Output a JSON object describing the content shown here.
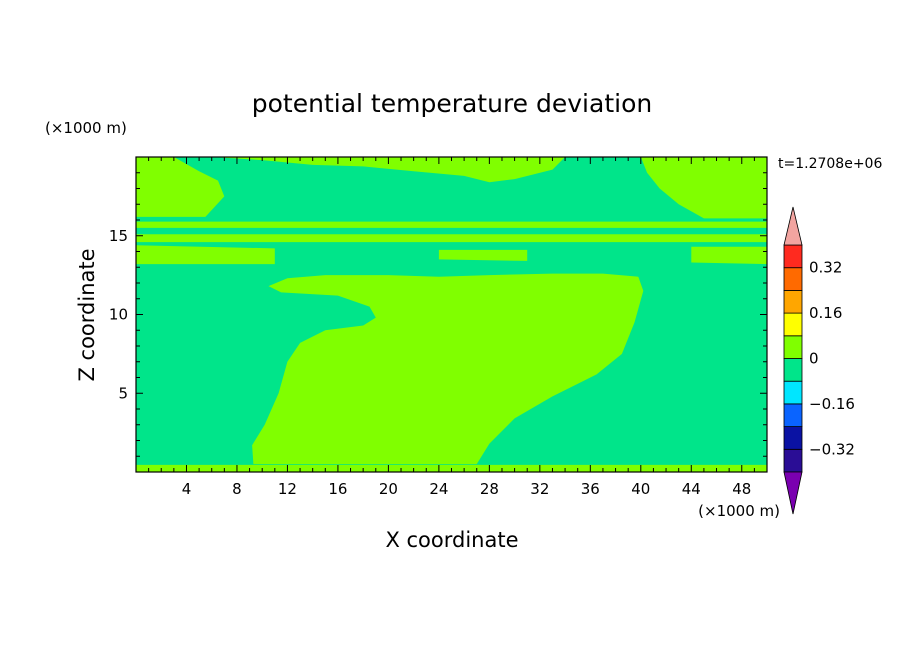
{
  "chart_data": {
    "type": "heatmap",
    "title": "potential temperature deviation",
    "xlabel": "X coordinate",
    "ylabel": "Z coordinate",
    "x_unit": "(×1000 m)",
    "y_unit": "(×1000 m)",
    "time_label": "t=1.2708e+06",
    "xlim": [
      0,
      50
    ],
    "ylim": [
      0,
      20
    ],
    "x_ticks": [
      4,
      8,
      12,
      16,
      20,
      24,
      28,
      32,
      36,
      40,
      44,
      48
    ],
    "y_ticks": [
      5,
      10,
      15
    ],
    "background_level": "-0.08_to_0",
    "colorbar": {
      "levels": [
        -0.4,
        -0.32,
        -0.24,
        -0.16,
        -0.08,
        0,
        0.08,
        0.16,
        0.24,
        0.32,
        0.4
      ],
      "labels": [
        "-0.32",
        "-0.16",
        "0",
        "0.16",
        "0.32"
      ],
      "label_values": [
        -0.32,
        -0.16,
        0,
        0.16,
        0.32
      ],
      "colors": [
        "#2a0d95",
        "#0a12a3",
        "#0a64ff",
        "#00e6ff",
        "#00e58a",
        "#80ff00",
        "#ffff00",
        "#ffa600",
        "#ff6a00",
        "#ff2a1f"
      ],
      "under_color": "#7a00b0",
      "over_color": "#f2a4a0"
    },
    "regions": [
      {
        "name": "warm-core",
        "level": "0_to_0.08",
        "color": "#80ff00",
        "polygon": [
          [
            9.3,
            0.5
          ],
          [
            27,
            0.5
          ],
          [
            28,
            1.8
          ],
          [
            30,
            3.4
          ],
          [
            33,
            4.8
          ],
          [
            36.5,
            6.2
          ],
          [
            38.5,
            7.5
          ],
          [
            39.5,
            9.5
          ],
          [
            40.2,
            11.5
          ],
          [
            39.8,
            12.4
          ],
          [
            37,
            12.6
          ],
          [
            33,
            12.6
          ],
          [
            28,
            12.5
          ],
          [
            24,
            12.4
          ],
          [
            20,
            12.5
          ],
          [
            15,
            12.5
          ],
          [
            12,
            12.3
          ],
          [
            10.5,
            11.8
          ],
          [
            11.5,
            11.4
          ],
          [
            16,
            11.2
          ],
          [
            18.5,
            10.5
          ],
          [
            19,
            9.8
          ],
          [
            18,
            9.3
          ],
          [
            15,
            9.0
          ],
          [
            13,
            8.2
          ],
          [
            12,
            7.0
          ],
          [
            11.3,
            5.0
          ],
          [
            10.2,
            3.0
          ],
          [
            9.2,
            1.7
          ]
        ]
      },
      {
        "name": "upper-band",
        "level": "0_to_0.08",
        "color": "#80ff00",
        "polygon": [
          [
            0,
            14.6
          ],
          [
            50,
            14.6
          ],
          [
            50,
            15.1
          ],
          [
            0,
            15.1
          ]
        ]
      },
      {
        "name": "upper-band-2",
        "level": "0_to_0.08",
        "color": "#80ff00",
        "polygon": [
          [
            0,
            15.5
          ],
          [
            50,
            15.5
          ],
          [
            50,
            15.9
          ],
          [
            0,
            15.9
          ]
        ]
      },
      {
        "name": "upper-strip-left",
        "level": "0_to_0.08",
        "color": "#80ff00",
        "polygon": [
          [
            0,
            13.2
          ],
          [
            11,
            13.2
          ],
          [
            11,
            14.2
          ],
          [
            0,
            14.4
          ]
        ]
      },
      {
        "name": "upper-strip-mid",
        "level": "0_to_0.08",
        "color": "#80ff00",
        "polygon": [
          [
            24,
            13.5
          ],
          [
            31,
            13.4
          ],
          [
            31,
            14.1
          ],
          [
            24,
            14.1
          ]
        ]
      },
      {
        "name": "upper-strip-right",
        "level": "0_to_0.08",
        "color": "#80ff00",
        "polygon": [
          [
            44,
            13.3
          ],
          [
            50,
            13.2
          ],
          [
            50,
            14.3
          ],
          [
            44,
            14.3
          ]
        ]
      },
      {
        "name": "stratosphere-left",
        "level": "0_to_0.08",
        "color": "#80ff00",
        "polygon": [
          [
            0,
            16.2
          ],
          [
            5.5,
            16.2
          ],
          [
            7,
            17.5
          ],
          [
            6.5,
            18.5
          ],
          [
            5,
            19.1
          ],
          [
            3,
            20
          ],
          [
            0,
            20
          ]
        ]
      },
      {
        "name": "stratosphere-center",
        "level": "0_to_0.08",
        "color": "#80ff00",
        "polygon": [
          [
            6,
            20
          ],
          [
            34,
            20
          ],
          [
            33,
            19.2
          ],
          [
            30,
            18.6
          ],
          [
            28,
            18.4
          ],
          [
            26,
            18.8
          ],
          [
            22,
            19.1
          ],
          [
            18,
            19.4
          ],
          [
            14,
            19.5
          ],
          [
            10,
            19.8
          ]
        ]
      },
      {
        "name": "stratosphere-right",
        "level": "0_to_0.08",
        "color": "#80ff00",
        "polygon": [
          [
            40,
            20
          ],
          [
            50,
            20
          ],
          [
            50,
            16.1
          ],
          [
            45,
            16.1
          ],
          [
            43,
            17
          ],
          [
            41.5,
            18
          ],
          [
            40.5,
            19
          ]
        ]
      },
      {
        "name": "surface-strip",
        "level": "0_to_0.08",
        "color": "#80ff00",
        "polygon": [
          [
            0,
            0
          ],
          [
            50,
            0
          ],
          [
            50,
            0.45
          ],
          [
            0,
            0.45
          ]
        ]
      }
    ]
  }
}
